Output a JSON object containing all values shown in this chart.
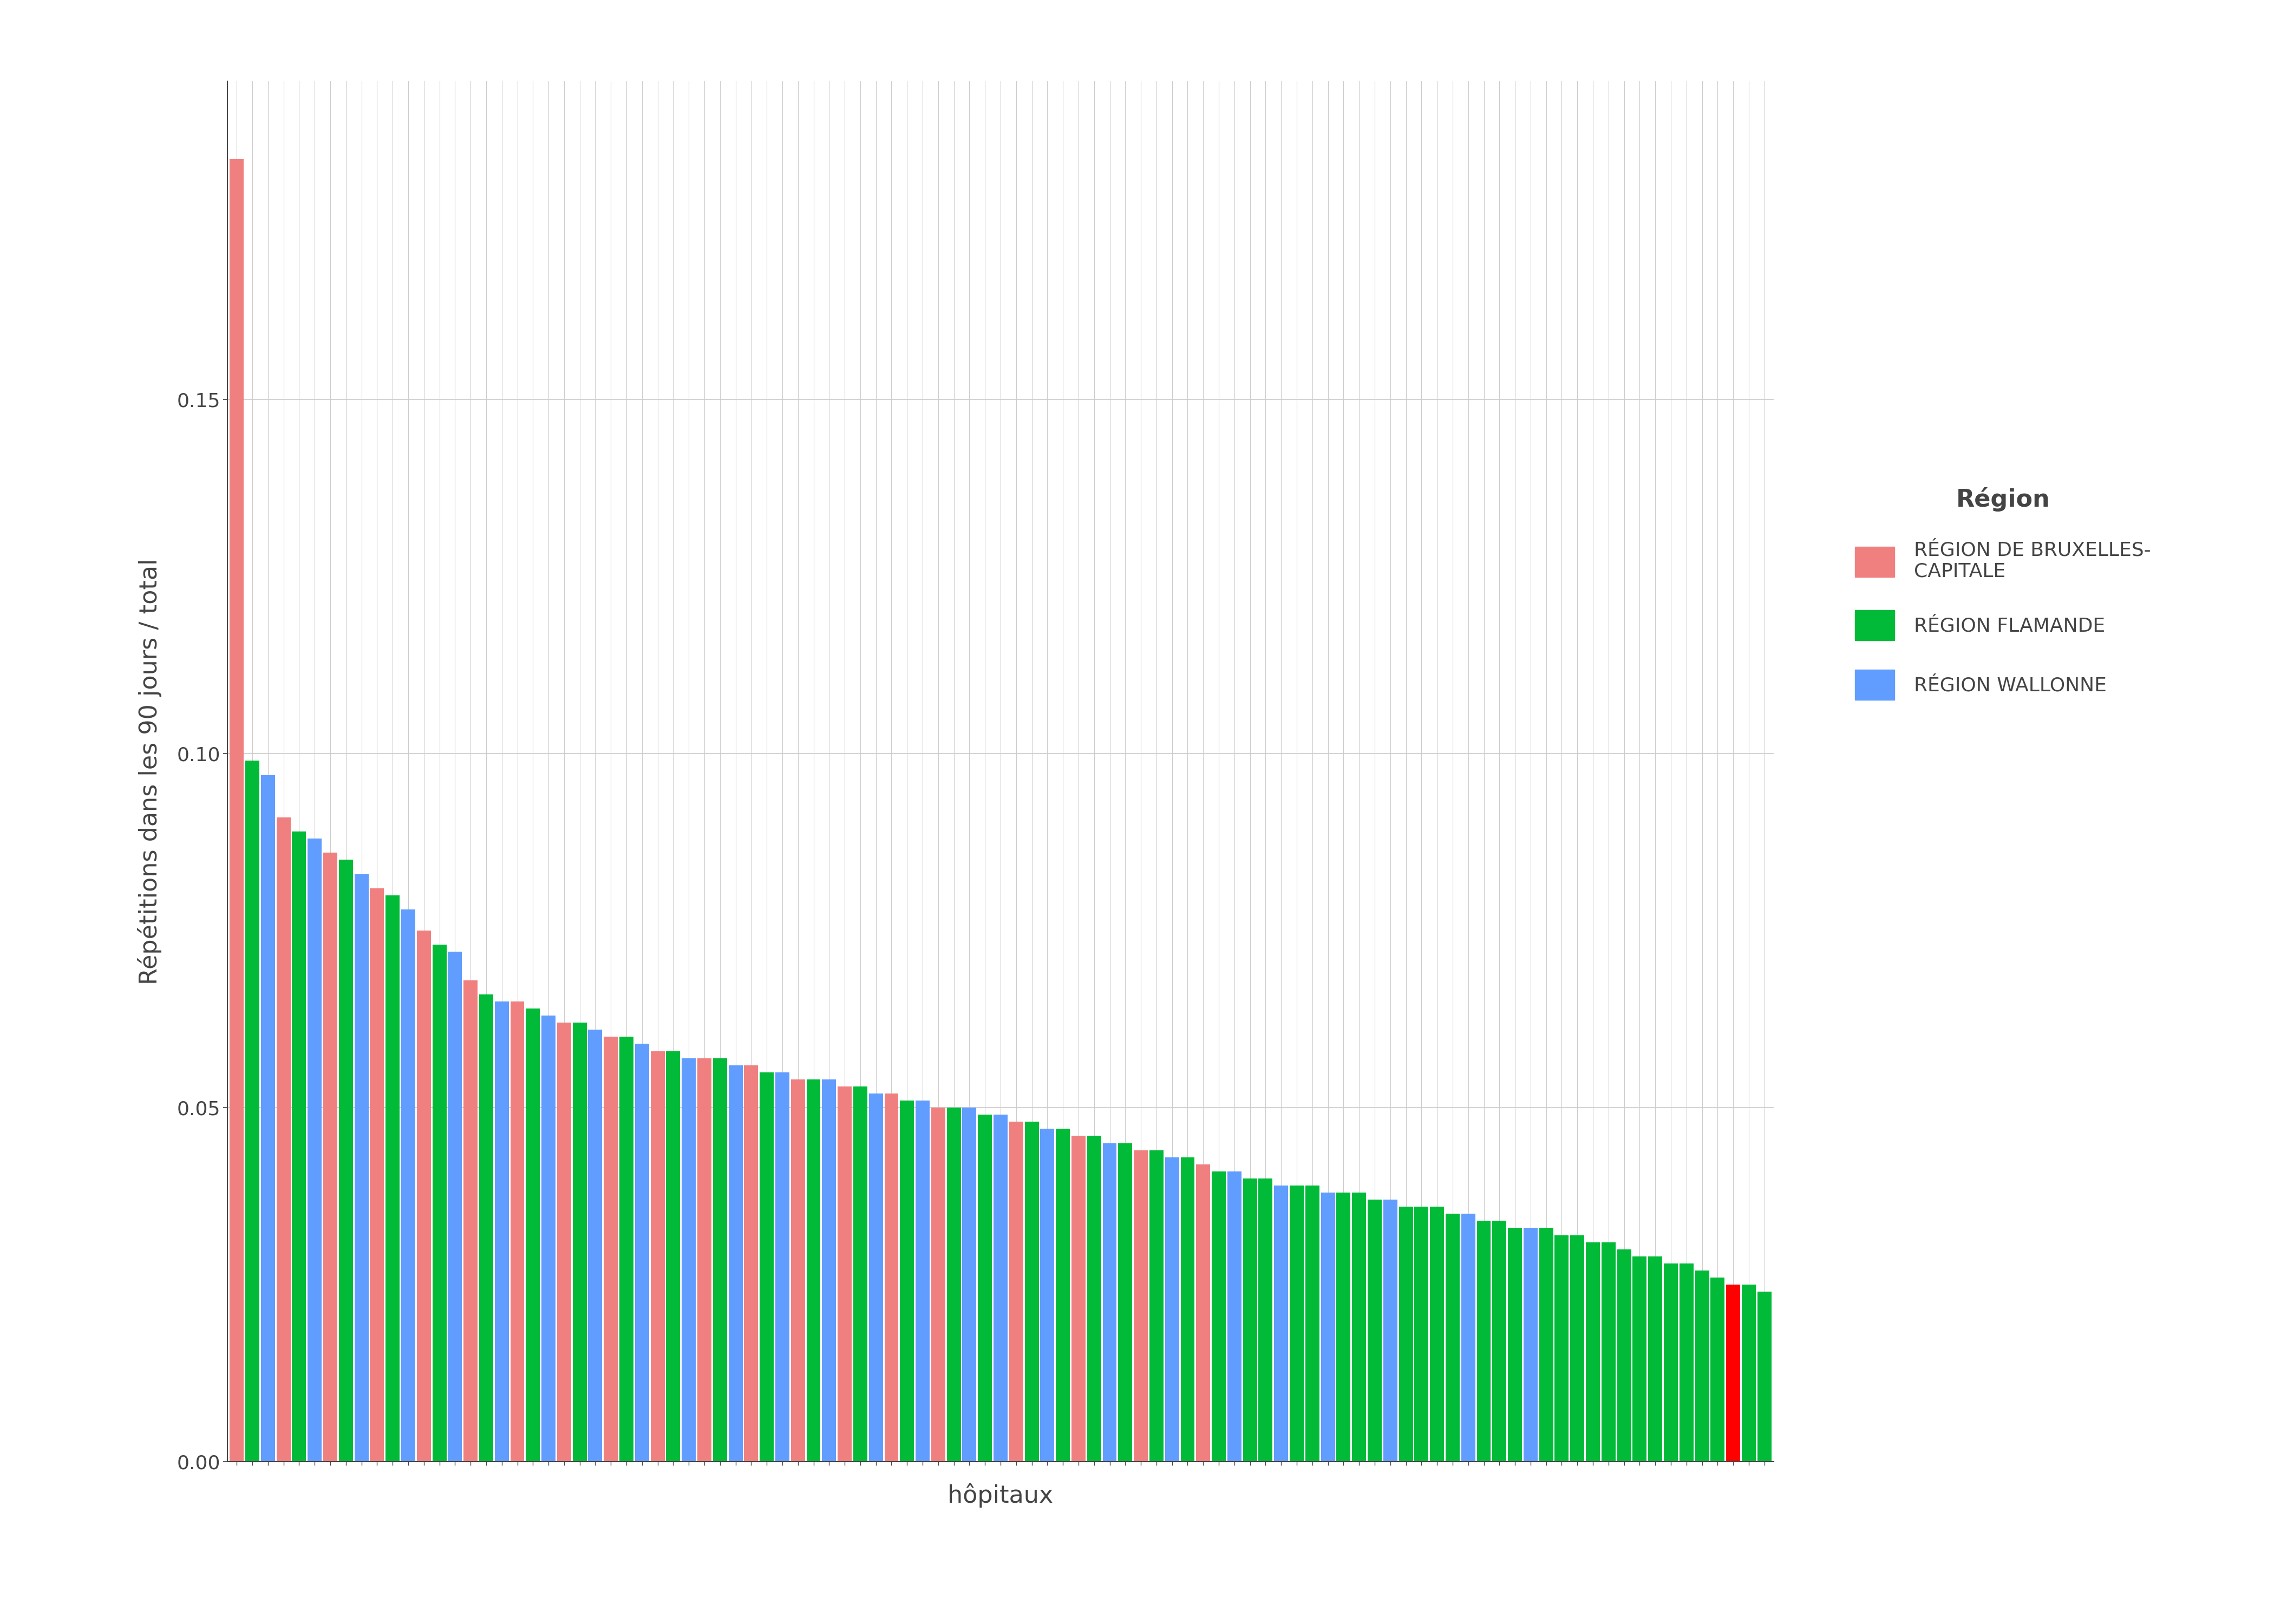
{
  "title": "",
  "xlabel": "hôpitaux",
  "ylabel": "Répétitions dans les 90 jours / total",
  "ylim": [
    0,
    0.195
  ],
  "yticks": [
    0.0,
    0.05,
    0.1,
    0.15
  ],
  "legend_title": "Région",
  "legend_entries": [
    "RÉGION DE BRUXELLES-\nCAPITALE",
    "RÉGION FLAMANDE",
    "RÉGION WALLONNE"
  ],
  "colors": {
    "bruxelles": "#F08080",
    "flamande": "#00BA38",
    "wallonne": "#619CFF",
    "red_special": "#FF0000"
  },
  "bar_values": [
    0.184,
    0.099,
    0.097,
    0.091,
    0.089,
    0.088,
    0.086,
    0.085,
    0.083,
    0.081,
    0.08,
    0.078,
    0.075,
    0.073,
    0.072,
    0.068,
    0.066,
    0.065,
    0.065,
    0.064,
    0.063,
    0.062,
    0.062,
    0.061,
    0.06,
    0.06,
    0.059,
    0.058,
    0.058,
    0.057,
    0.057,
    0.057,
    0.056,
    0.056,
    0.055,
    0.055,
    0.054,
    0.054,
    0.054,
    0.053,
    0.053,
    0.052,
    0.052,
    0.051,
    0.051,
    0.05,
    0.05,
    0.05,
    0.049,
    0.049,
    0.048,
    0.048,
    0.047,
    0.047,
    0.046,
    0.046,
    0.045,
    0.045,
    0.044,
    0.044,
    0.043,
    0.043,
    0.042,
    0.041,
    0.041,
    0.04,
    0.04,
    0.039,
    0.039,
    0.039,
    0.038,
    0.038,
    0.038,
    0.037,
    0.037,
    0.036,
    0.036,
    0.036,
    0.035,
    0.035,
    0.034,
    0.034,
    0.033,
    0.033,
    0.033,
    0.032,
    0.032,
    0.031,
    0.031,
    0.03,
    0.029,
    0.029,
    0.028,
    0.028,
    0.027,
    0.026,
    0.025,
    0.025,
    0.024
  ],
  "bar_regions": [
    "B",
    "G",
    "W",
    "B",
    "G",
    "W",
    "B",
    "G",
    "W",
    "B",
    "G",
    "W",
    "B",
    "G",
    "W",
    "B",
    "G",
    "W",
    "B",
    "G",
    "W",
    "B",
    "G",
    "W",
    "B",
    "G",
    "W",
    "B",
    "G",
    "W",
    "B",
    "G",
    "W",
    "B",
    "G",
    "W",
    "B",
    "G",
    "W",
    "B",
    "G",
    "W",
    "B",
    "G",
    "W",
    "B",
    "G",
    "W",
    "G",
    "W",
    "B",
    "G",
    "W",
    "G",
    "B",
    "G",
    "W",
    "G",
    "B",
    "G",
    "W",
    "G",
    "B",
    "G",
    "W",
    "G",
    "G",
    "W",
    "G",
    "G",
    "W",
    "G",
    "G",
    "G",
    "W",
    "G",
    "G",
    "G",
    "G",
    "W",
    "G",
    "G",
    "G",
    "W",
    "G",
    "G",
    "G",
    "G",
    "G",
    "G",
    "G",
    "G",
    "G",
    "G",
    "G",
    "G",
    "R",
    "G",
    "G"
  ],
  "background_color": "#FFFFFF",
  "panel_background": "#FFFFFF",
  "grid_color": "#CCCCCC",
  "axis_color": "#444444",
  "font_size_label": 32,
  "font_size_tick": 26,
  "font_size_legend_title": 32,
  "font_size_legend": 26
}
